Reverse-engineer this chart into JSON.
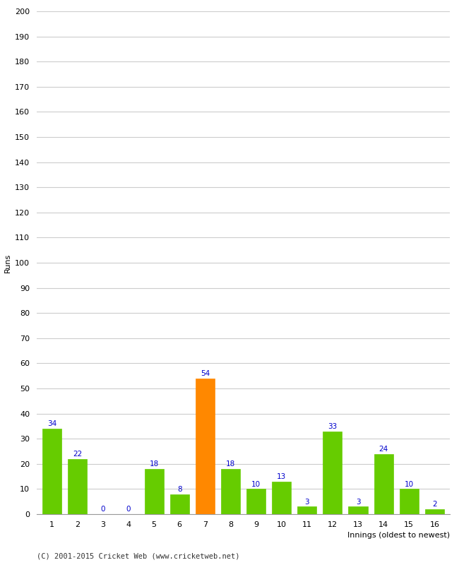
{
  "innings": [
    1,
    2,
    3,
    4,
    5,
    6,
    7,
    8,
    9,
    10,
    11,
    12,
    13,
    14,
    15,
    16
  ],
  "runs": [
    34,
    22,
    0,
    0,
    18,
    8,
    54,
    18,
    10,
    13,
    3,
    33,
    3,
    24,
    10,
    2
  ],
  "bar_colors": [
    "#66cc00",
    "#66cc00",
    "#66cc00",
    "#66cc00",
    "#66cc00",
    "#66cc00",
    "#ff8800",
    "#66cc00",
    "#66cc00",
    "#66cc00",
    "#66cc00",
    "#66cc00",
    "#66cc00",
    "#66cc00",
    "#66cc00",
    "#66cc00"
  ],
  "xlabel": "Innings (oldest to newest)",
  "ylabel": "Runs",
  "ylim": [
    0,
    200
  ],
  "yticks": [
    0,
    10,
    20,
    30,
    40,
    50,
    60,
    70,
    80,
    90,
    100,
    110,
    120,
    130,
    140,
    150,
    160,
    170,
    180,
    190,
    200
  ],
  "label_color": "#0000cc",
  "label_fontsize": 7.5,
  "axis_label_fontsize": 8,
  "tick_fontsize": 8,
  "footer": "(C) 2001-2015 Cricket Web (www.cricketweb.net)",
  "footer_fontsize": 7.5,
  "background_color": "#ffffff",
  "grid_color": "#cccccc"
}
